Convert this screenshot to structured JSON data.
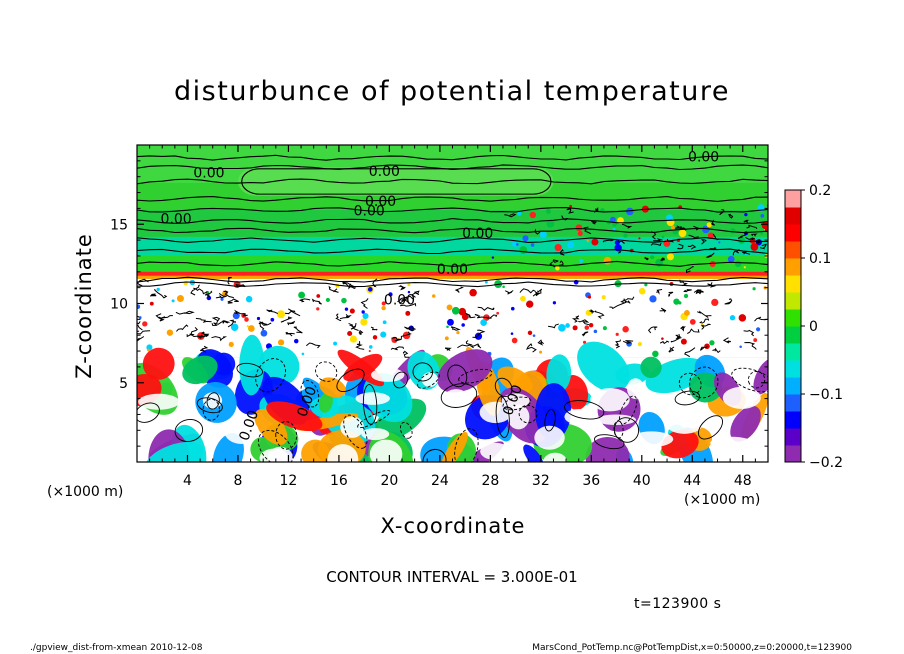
{
  "chart_data": {
    "type": "heatmap",
    "title": "disturbunce of potential temperature",
    "xlabel": "X-coordinate",
    "ylabel": "Z-coordinate",
    "x_unit_label": "(×1000 m)",
    "xlim": [
      0,
      50
    ],
    "ylim": [
      0,
      20
    ],
    "x_ticks": [
      4,
      8,
      12,
      16,
      20,
      24,
      28,
      32,
      36,
      40,
      44,
      48
    ],
    "y_ticks": [
      5,
      10,
      15
    ],
    "colorbar": {
      "range": [
        -0.2,
        0.2
      ],
      "tick_labels": [
        "0.2",
        "0.1",
        "0",
        "−0.1",
        "−0.2"
      ],
      "tick_values": [
        0.2,
        0.1,
        0,
        -0.1,
        -0.2
      ],
      "colors": [
        "#8e2bb0",
        "#5a00c8",
        "#0000ff",
        "#1e60ff",
        "#00b0ff",
        "#00e0e0",
        "#00e8a0",
        "#00d040",
        "#30e000",
        "#c0e800",
        "#ffe000",
        "#ffa000",
        "#ff5000",
        "#ff0000",
        "#e00000",
        "#ffa0a0"
      ]
    },
    "contour_labels": [
      {
        "text": "0.00",
        "x": 44.9,
        "z": 19.2
      },
      {
        "text": "0.00",
        "x": 5.7,
        "z": 18.2
      },
      {
        "text": "0.00",
        "x": 19.6,
        "z": 18.3
      },
      {
        "text": "0.00",
        "x": 19.3,
        "z": 16.4
      },
      {
        "text": "0.00",
        "x": 18.4,
        "z": 15.8
      },
      {
        "text": "0.00",
        "x": 3.1,
        "z": 15.3
      },
      {
        "text": "0.00",
        "x": 27.0,
        "z": 14.4
      },
      {
        "text": "0.00",
        "x": 25.0,
        "z": 12.1
      },
      {
        "text": "0.00",
        "x": 20.8,
        "z": 10.2
      },
      {
        "text": "0.00",
        "x": 8.9,
        "z": 2.3
      },
      {
        "text": "0.00",
        "x": 13.5,
        "z": 3.8
      },
      {
        "text": "0.00",
        "x": 29.8,
        "z": 3.9
      }
    ],
    "contour_interval_text": "CONTOUR INTERVAL = 3.000E-01"
  },
  "time_label": "t=123900 s",
  "footer": {
    "left": "./gpview_dist-from-xmean  2010-12-08",
    "right": "MarsCond_PotTemp.nc@PotTempDist,x=0:50000,z=0:20000,t=123900"
  },
  "colors": {
    "background": "#ffffff",
    "upper_field": "#30d030",
    "ring_band": "#ff2020"
  }
}
